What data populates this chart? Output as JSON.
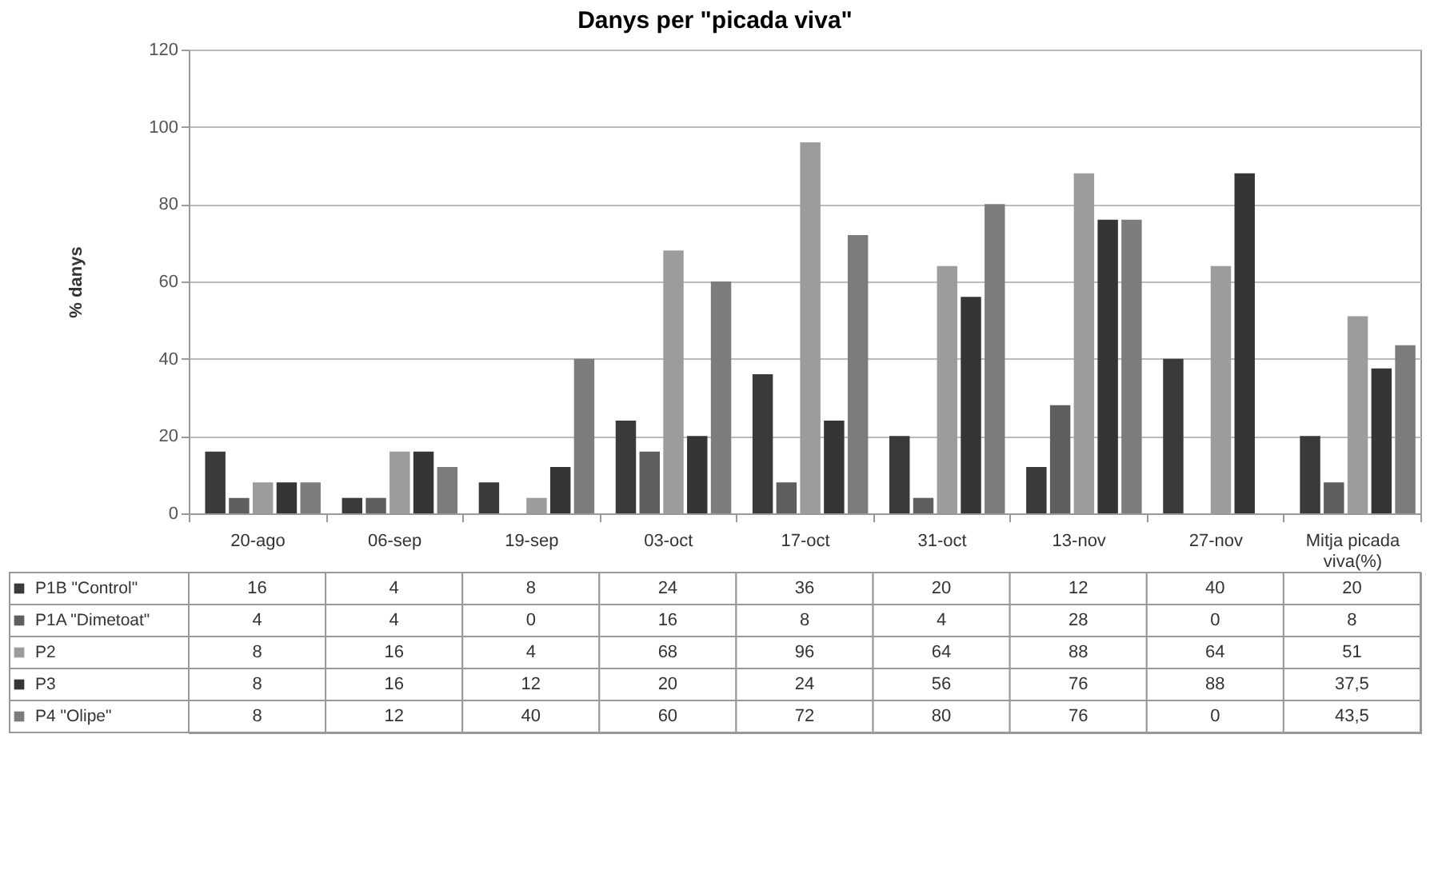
{
  "chart_data": {
    "type": "bar",
    "title": "Danys per \"picada viva\"",
    "ylabel": "% danys",
    "categories": [
      "20-ago",
      "06-sep",
      "19-sep",
      "03-oct",
      "17-oct",
      "31-oct",
      "13-nov",
      "27-nov",
      "Mitja picada viva(%)"
    ],
    "series": [
      {
        "name": "P1B \"Control\"",
        "color": "#3a3a3a",
        "values": [
          16,
          4,
          8,
          24,
          36,
          20,
          12,
          40,
          20
        ],
        "value_labels": [
          "16",
          "4",
          "8",
          "24",
          "36",
          "20",
          "12",
          "40",
          "20"
        ]
      },
      {
        "name": "P1A  \"Dimetoat\"",
        "color": "#5e5e5e",
        "values": [
          4,
          4,
          0,
          16,
          8,
          4,
          28,
          0,
          8
        ],
        "value_labels": [
          "4",
          "4",
          "0",
          "16",
          "8",
          "4",
          "28",
          "0",
          "8"
        ]
      },
      {
        "name": "P2",
        "color": "#9c9c9c",
        "values": [
          8,
          16,
          4,
          68,
          96,
          64,
          88,
          64,
          51
        ],
        "value_labels": [
          "8",
          "16",
          "4",
          "68",
          "96",
          "64",
          "88",
          "64",
          "51"
        ]
      },
      {
        "name": "P3",
        "color": "#353535",
        "values": [
          8,
          16,
          12,
          20,
          24,
          56,
          76,
          88,
          37.5
        ],
        "value_labels": [
          "8",
          "16",
          "12",
          "20",
          "24",
          "56",
          "76",
          "88",
          "37,5"
        ]
      },
      {
        "name": "P4 \"Olipe\"",
        "color": "#7c7c7c",
        "values": [
          8,
          12,
          40,
          60,
          72,
          80,
          76,
          0,
          43.5
        ],
        "value_labels": [
          "8",
          "12",
          "40",
          "60",
          "72",
          "80",
          "76",
          "0",
          "43,5"
        ]
      }
    ],
    "ylim": [
      0,
      120
    ],
    "yticks": [
      0,
      20,
      40,
      60,
      80,
      100,
      120
    ],
    "grid": "y",
    "legend": "bottom"
  }
}
